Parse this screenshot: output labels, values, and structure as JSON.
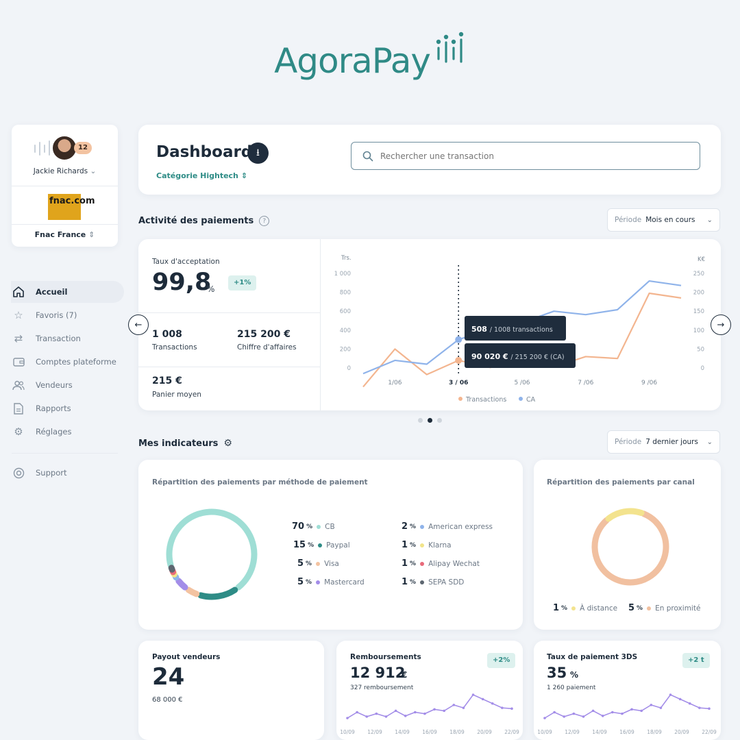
{
  "brand": {
    "name": "AgoraPay",
    "color": "#2f8a86"
  },
  "account": {
    "user_name": "Jackie Richards",
    "notifications": "12",
    "merchant_logo": "fnac.com",
    "merchant_name": "Fnac France"
  },
  "nav": [
    {
      "label": "Accueil",
      "icon": "home-icon",
      "active": true
    },
    {
      "label": "Favoris (7)",
      "icon": "star-icon",
      "active": false
    },
    {
      "label": "Transaction",
      "icon": "transfer-icon",
      "active": false
    },
    {
      "label": "Comptes plateforme",
      "icon": "wallet-icon",
      "active": false
    },
    {
      "label": "Vendeurs",
      "icon": "users-icon",
      "active": false
    },
    {
      "label": "Rapports",
      "icon": "document-icon",
      "active": false
    },
    {
      "label": "Réglages",
      "icon": "gear-icon",
      "active": false
    }
  ],
  "support_label": "Support",
  "header": {
    "title": "Dashboard",
    "category": "Catégorie Hightech",
    "search_placeholder": "Rechercher une transaction"
  },
  "activity": {
    "title": "Activité des paiements",
    "period_label": "Période",
    "period_value": "Mois en cours",
    "acceptance_label": "Taux d'acceptation",
    "acceptance_value": "99,8",
    "acceptance_unit": "%",
    "acceptance_delta": "+1%",
    "transactions_value": "1 008",
    "transactions_label": "Transactions",
    "revenue_value": "215 200 €",
    "revenue_label": "Chiffre d'affaires",
    "basket_value": "215 €",
    "basket_label": "Panier moyen"
  },
  "chart_data": {
    "type": "line",
    "x": [
      "",
      "1/06",
      "",
      "3 / 06",
      "",
      "5 /06",
      "",
      "7 /06",
      "",
      "9 /06",
      ""
    ],
    "x_tick_labels": [
      "1/06",
      "3 / 06",
      "5 /06",
      "7 /06",
      "9 /06"
    ],
    "left_axis": {
      "label": "Trs.",
      "ticks": [
        "0",
        "200",
        "400",
        "600",
        "800",
        "1 000"
      ],
      "range": [
        0,
        1000
      ]
    },
    "right_axis": {
      "label": "K€",
      "ticks": [
        "0",
        "50",
        "100",
        "150",
        "200",
        "250"
      ],
      "range": [
        0,
        250
      ]
    },
    "series": [
      {
        "name": "Transactions",
        "color": "#f3b58f",
        "axis": "left",
        "values": [
          -200,
          200,
          -70,
          80,
          5,
          120,
          10,
          120,
          100,
          790,
          740
        ]
      },
      {
        "name": "CA",
        "color": "#8fb3ea",
        "axis": "right",
        "values": [
          -15,
          20,
          10,
          75,
          102,
          120,
          150,
          141,
          154,
          230,
          218
        ]
      }
    ],
    "tooltip": {
      "transactions_bold": "508",
      "transactions_rest": "/ 1008 transactions",
      "revenue_bold": "90 020 €",
      "revenue_rest": "/ 215 200 € (CA)"
    }
  },
  "indicators": {
    "title": "Mes indicateurs",
    "period_label": "Période",
    "period_value": "7 dernier jours",
    "methods_title": "Répartition des paiements par méthode de paiement",
    "methods": [
      {
        "pct": "70",
        "label": "CB",
        "color": "#9fded5"
      },
      {
        "pct": "15",
        "label": "Paypal",
        "color": "#2e8c86"
      },
      {
        "pct": "5",
        "label": "Visa",
        "color": "#f3c3a1"
      },
      {
        "pct": "5",
        "label": "Mastercard",
        "color": "#a38de8"
      },
      {
        "pct": "2",
        "label": "American express",
        "color": "#8fb3ea"
      },
      {
        "pct": "1",
        "label": "Klarna",
        "color": "#f1e48a"
      },
      {
        "pct": "1",
        "label": "Alipay Wechat",
        "color": "#e86a7a"
      },
      {
        "pct": "1",
        "label": "SEPA SDD",
        "color": "#5d6670"
      }
    ],
    "canal_title": "Répartition des paiements par canal",
    "canal": [
      {
        "pct": "1",
        "label": "À distance",
        "color": "#f3e38e"
      },
      {
        "pct": "5",
        "label": "En proximité",
        "color": "#f1c0a0"
      }
    ]
  },
  "payout": {
    "title": "Payout vendeurs",
    "value": "24",
    "sub": "68 000 €"
  },
  "refunds": {
    "title": "Remboursements",
    "value": "12 912",
    "unit": "€",
    "sub": "327 remboursement",
    "delta": "+2%",
    "dates": [
      "10/09",
      "12/09",
      "14/09",
      "16/09",
      "18/09",
      "20/09",
      "22/09"
    ],
    "values": [
      30,
      38,
      32,
      36,
      32,
      40,
      33,
      38,
      36,
      42,
      40,
      48,
      44,
      62,
      56,
      50,
      44,
      43
    ]
  },
  "threeds": {
    "title": "Taux de paiement 3DS",
    "value": "35",
    "unit": "%",
    "sub": "1 260 paiement",
    "delta": "+2 t",
    "dates": [
      "10/09",
      "12/09",
      "14/09",
      "16/09",
      "18/09",
      "20/09",
      "22/09"
    ],
    "values": [
      30,
      38,
      32,
      36,
      32,
      40,
      33,
      38,
      36,
      42,
      40,
      48,
      44,
      62,
      56,
      50,
      44,
      43
    ]
  }
}
